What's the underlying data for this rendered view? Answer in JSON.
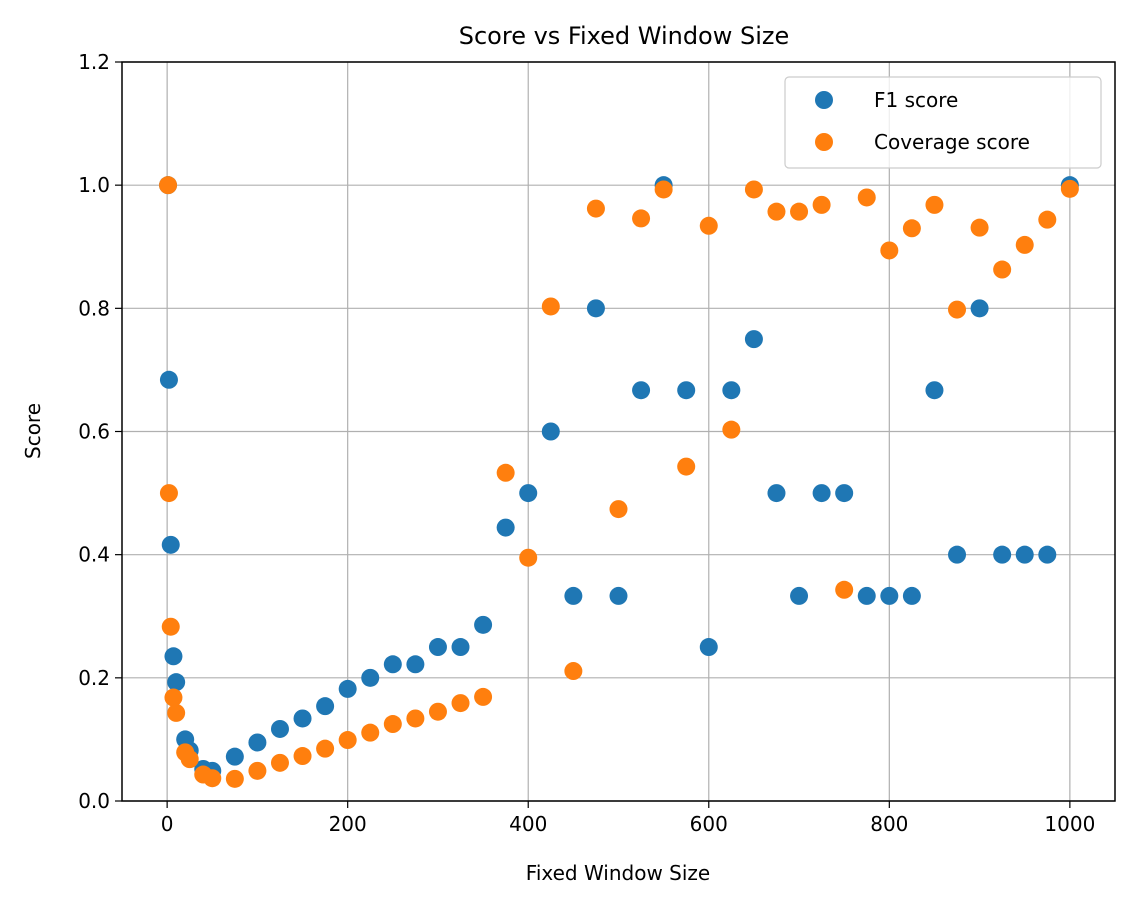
{
  "chart_data": {
    "type": "scatter",
    "title": "Score vs Fixed Window Size",
    "xlabel": "Fixed Window Size",
    "ylabel": "Score",
    "xlim": [
      -50,
      1050
    ],
    "ylim": [
      0.0,
      1.2
    ],
    "xticks": [
      0,
      200,
      400,
      600,
      800,
      1000
    ],
    "xtick_labels": [
      "0",
      "200",
      "400",
      "600",
      "800",
      "1000"
    ],
    "yticks": [
      0.0,
      0.2,
      0.4,
      0.6,
      0.8,
      1.0,
      1.2
    ],
    "ytick_labels": [
      "0.0",
      "0.2",
      "0.4",
      "0.6",
      "0.8",
      "1.0",
      "1.2"
    ],
    "grid": true,
    "legend_position": "top-right",
    "series": [
      {
        "name": "F1 score",
        "color": "#1f77b4",
        "points": [
          [
            1,
            1.0
          ],
          [
            2,
            0.684
          ],
          [
            4,
            0.416
          ],
          [
            7,
            0.235
          ],
          [
            10,
            0.193
          ],
          [
            20,
            0.1
          ],
          [
            25,
            0.082
          ],
          [
            40,
            0.052
          ],
          [
            50,
            0.049
          ],
          [
            75,
            0.072
          ],
          [
            100,
            0.095
          ],
          [
            125,
            0.117
          ],
          [
            150,
            0.134
          ],
          [
            175,
            0.154
          ],
          [
            200,
            0.182
          ],
          [
            225,
            0.2
          ],
          [
            250,
            0.222
          ],
          [
            275,
            0.222
          ],
          [
            300,
            0.25
          ],
          [
            325,
            0.25
          ],
          [
            350,
            0.286
          ],
          [
            375,
            0.444
          ],
          [
            400,
            0.5
          ],
          [
            425,
            0.6
          ],
          [
            450,
            0.333
          ],
          [
            475,
            0.8
          ],
          [
            500,
            0.333
          ],
          [
            525,
            0.667
          ],
          [
            550,
            1.0
          ],
          [
            575,
            0.667
          ],
          [
            600,
            0.25
          ],
          [
            625,
            0.667
          ],
          [
            650,
            0.75
          ],
          [
            675,
            0.5
          ],
          [
            700,
            0.333
          ],
          [
            725,
            0.5
          ],
          [
            750,
            0.5
          ],
          [
            775,
            0.333
          ],
          [
            800,
            0.333
          ],
          [
            825,
            0.333
          ],
          [
            850,
            0.667
          ],
          [
            875,
            0.4
          ],
          [
            900,
            0.8
          ],
          [
            925,
            0.4
          ],
          [
            950,
            0.4
          ],
          [
            975,
            0.4
          ],
          [
            1000,
            1.0
          ]
        ]
      },
      {
        "name": "Coverage score",
        "color": "#ff7f0e",
        "points": [
          [
            1,
            1.0
          ],
          [
            2,
            0.5
          ],
          [
            4,
            0.283
          ],
          [
            7,
            0.168
          ],
          [
            10,
            0.143
          ],
          [
            20,
            0.079
          ],
          [
            25,
            0.068
          ],
          [
            40,
            0.043
          ],
          [
            50,
            0.037
          ],
          [
            75,
            0.036
          ],
          [
            100,
            0.049
          ],
          [
            125,
            0.062
          ],
          [
            150,
            0.073
          ],
          [
            175,
            0.085
          ],
          [
            200,
            0.099
          ],
          [
            225,
            0.111
          ],
          [
            250,
            0.125
          ],
          [
            275,
            0.134
          ],
          [
            300,
            0.145
          ],
          [
            325,
            0.159
          ],
          [
            350,
            0.169
          ],
          [
            375,
            0.533
          ],
          [
            400,
            0.395
          ],
          [
            425,
            0.803
          ],
          [
            450,
            0.211
          ],
          [
            475,
            0.962
          ],
          [
            500,
            0.474
          ],
          [
            525,
            0.946
          ],
          [
            550,
            0.993
          ],
          [
            575,
            0.543
          ],
          [
            600,
            0.934
          ],
          [
            625,
            0.603
          ],
          [
            650,
            0.993
          ],
          [
            675,
            0.957
          ],
          [
            700,
            0.957
          ],
          [
            725,
            0.968
          ],
          [
            750,
            0.343
          ],
          [
            775,
            0.98
          ],
          [
            800,
            0.894
          ],
          [
            825,
            0.93
          ],
          [
            850,
            0.968
          ],
          [
            875,
            0.798
          ],
          [
            900,
            0.931
          ],
          [
            925,
            0.863
          ],
          [
            950,
            0.903
          ],
          [
            975,
            0.944
          ],
          [
            1000,
            0.994
          ]
        ]
      }
    ]
  }
}
